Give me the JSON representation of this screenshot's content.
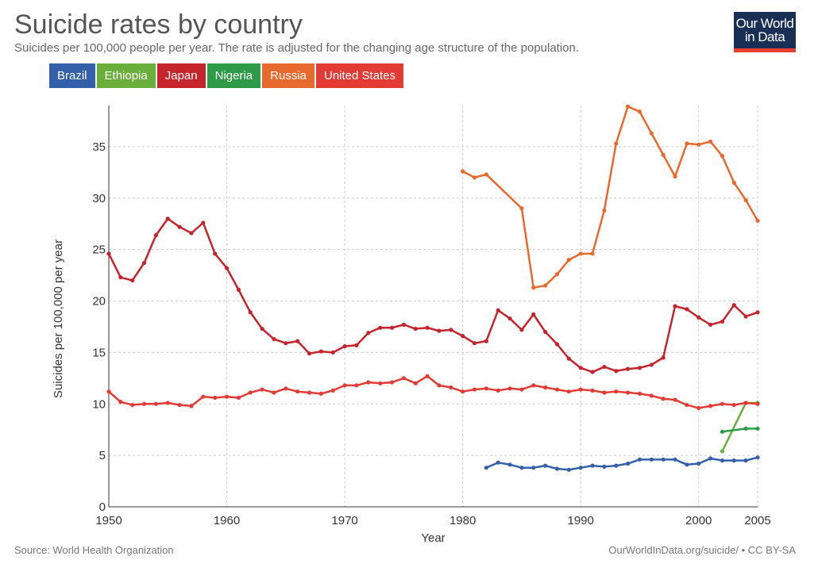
{
  "header": {
    "title": "Suicide rates by country",
    "subtitle": "Suicides per 100,000 people per year. The rate is adjusted for the changing age structure of the population."
  },
  "logo": {
    "line1": "Our World",
    "line2": "in Data"
  },
  "footer": {
    "source": "Source: World Health Organization",
    "license": "OurWorldInData.org/suicide/ • CC BY-SA"
  },
  "chart_data": {
    "type": "line",
    "title": "Suicide rates by country",
    "subtitle": "Suicides per 100,000 people per year. The rate is adjusted for the changing age structure of the population.",
    "xlabel": "Year",
    "ylabel": "Suicides per 100,000 per year",
    "xlim": [
      1950,
      2005
    ],
    "ylim": [
      0,
      39
    ],
    "x_ticks": [
      1950,
      1960,
      1970,
      1980,
      1990,
      2000,
      2005
    ],
    "y_ticks": [
      0,
      5,
      10,
      15,
      20,
      25,
      30,
      35
    ],
    "grid": true,
    "legend_position": "top-left",
    "series": [
      {
        "name": "Brazil",
        "color": "#3360a9",
        "x": [
          1982,
          1983,
          1984,
          1985,
          1986,
          1987,
          1988,
          1989,
          1990,
          1991,
          1992,
          1993,
          1994,
          1995,
          1996,
          1997,
          1998,
          1999,
          2000,
          2001,
          2002,
          2003,
          2004,
          2005
        ],
        "y": [
          3.8,
          4.3,
          4.1,
          3.8,
          3.8,
          4.0,
          3.7,
          3.6,
          3.8,
          4.0,
          3.9,
          4.0,
          4.2,
          4.6,
          4.6,
          4.6,
          4.6,
          4.1,
          4.2,
          4.7,
          4.5,
          4.5,
          4.5,
          4.8
        ]
      },
      {
        "name": "Ethiopia",
        "color": "#6aaf3c",
        "x": [
          2002,
          2004,
          2005
        ],
        "y": [
          5.4,
          10.1,
          10.1
        ]
      },
      {
        "name": "Japan",
        "color": "#c4242b",
        "x": [
          1950,
          1951,
          1952,
          1953,
          1954,
          1955,
          1956,
          1957,
          1958,
          1959,
          1960,
          1961,
          1962,
          1963,
          1964,
          1965,
          1966,
          1967,
          1968,
          1969,
          1970,
          1971,
          1972,
          1973,
          1974,
          1975,
          1976,
          1977,
          1978,
          1979,
          1980,
          1981,
          1982,
          1983,
          1984,
          1985,
          1986,
          1987,
          1988,
          1989,
          1990,
          1991,
          1992,
          1993,
          1994,
          1995,
          1996,
          1997,
          1998,
          1999,
          2000,
          2001,
          2002,
          2003,
          2004,
          2005
        ],
        "y": [
          24.6,
          22.3,
          22.0,
          23.7,
          26.4,
          28.0,
          27.2,
          26.6,
          27.6,
          24.6,
          23.2,
          21.1,
          18.9,
          17.3,
          16.3,
          15.9,
          16.1,
          14.9,
          15.1,
          15.0,
          15.6,
          15.7,
          16.9,
          17.4,
          17.4,
          17.7,
          17.3,
          17.4,
          17.1,
          17.2,
          16.6,
          15.9,
          16.1,
          19.1,
          18.3,
          17.2,
          18.7,
          17.0,
          15.8,
          14.4,
          13.5,
          13.1,
          13.6,
          13.2,
          13.4,
          13.5,
          13.8,
          14.5,
          19.5,
          19.2,
          18.4,
          17.7,
          18.0,
          19.6,
          18.5,
          18.9
        ]
      },
      {
        "name": "Nigeria",
        "color": "#2e9b48",
        "x": [
          2002,
          2004,
          2005
        ],
        "y": [
          7.3,
          7.6,
          7.6
        ]
      },
      {
        "name": "Russia",
        "color": "#e8692e",
        "x": [
          1980,
          1981,
          1982,
          1985,
          1986,
          1987,
          1988,
          1989,
          1990,
          1991,
          1992,
          1993,
          1994,
          1995,
          1996,
          1997,
          1998,
          1999,
          2000,
          2001,
          2002,
          2003,
          2004,
          2005
        ],
        "y": [
          32.6,
          32.0,
          32.3,
          29.0,
          21.3,
          21.5,
          22.6,
          24.0,
          24.6,
          24.6,
          28.8,
          35.3,
          38.9,
          38.4,
          36.3,
          34.2,
          32.1,
          35.3,
          35.2,
          35.5,
          34.1,
          31.5,
          29.8,
          27.8
        ]
      },
      {
        "name": "United States",
        "color": "#e23b34",
        "x": [
          1950,
          1951,
          1952,
          1953,
          1954,
          1955,
          1956,
          1957,
          1958,
          1959,
          1960,
          1961,
          1962,
          1963,
          1964,
          1965,
          1966,
          1967,
          1968,
          1969,
          1970,
          1971,
          1972,
          1973,
          1974,
          1975,
          1976,
          1977,
          1978,
          1979,
          1980,
          1981,
          1982,
          1983,
          1984,
          1985,
          1986,
          1987,
          1988,
          1989,
          1990,
          1991,
          1992,
          1993,
          1994,
          1995,
          1996,
          1997,
          1998,
          1999,
          2000,
          2001,
          2002,
          2003,
          2004,
          2005
        ],
        "y": [
          11.2,
          10.2,
          9.9,
          10.0,
          10.0,
          10.1,
          9.9,
          9.8,
          10.7,
          10.6,
          10.7,
          10.6,
          11.1,
          11.4,
          11.1,
          11.5,
          11.2,
          11.1,
          11.0,
          11.3,
          11.8,
          11.8,
          12.1,
          12.0,
          12.1,
          12.5,
          12.0,
          12.7,
          11.8,
          11.6,
          11.2,
          11.4,
          11.5,
          11.3,
          11.5,
          11.4,
          11.8,
          11.6,
          11.4,
          11.2,
          11.4,
          11.3,
          11.1,
          11.2,
          11.1,
          11.0,
          10.8,
          10.5,
          10.4,
          9.9,
          9.6,
          9.8,
          10.0,
          9.9,
          10.1,
          10.0
        ]
      }
    ]
  }
}
